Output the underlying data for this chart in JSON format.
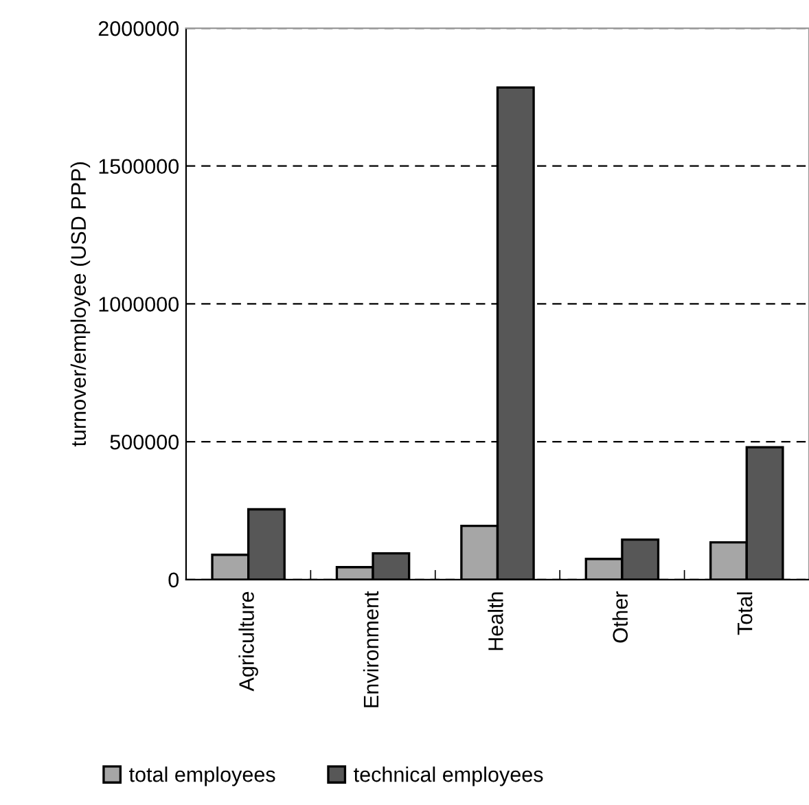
{
  "chart_data": {
    "type": "bar",
    "ylabel": "turnover/employee (USD PPP)",
    "categories": [
      "Agriculture",
      "Environment",
      "Health",
      "Other",
      "Total"
    ],
    "series": [
      {
        "name": "total employees",
        "color": "#a6a6a6",
        "values": [
          90000,
          45000,
          195000,
          75000,
          135000
        ]
      },
      {
        "name": "technical employees",
        "color": "#575757",
        "values": [
          255000,
          95000,
          1785000,
          145000,
          480000
        ]
      }
    ],
    "ylim": [
      0,
      2000000
    ],
    "yticks": [
      0,
      500000,
      1000000,
      1500000,
      2000000
    ],
    "grid": "y",
    "legend": "bottom"
  }
}
